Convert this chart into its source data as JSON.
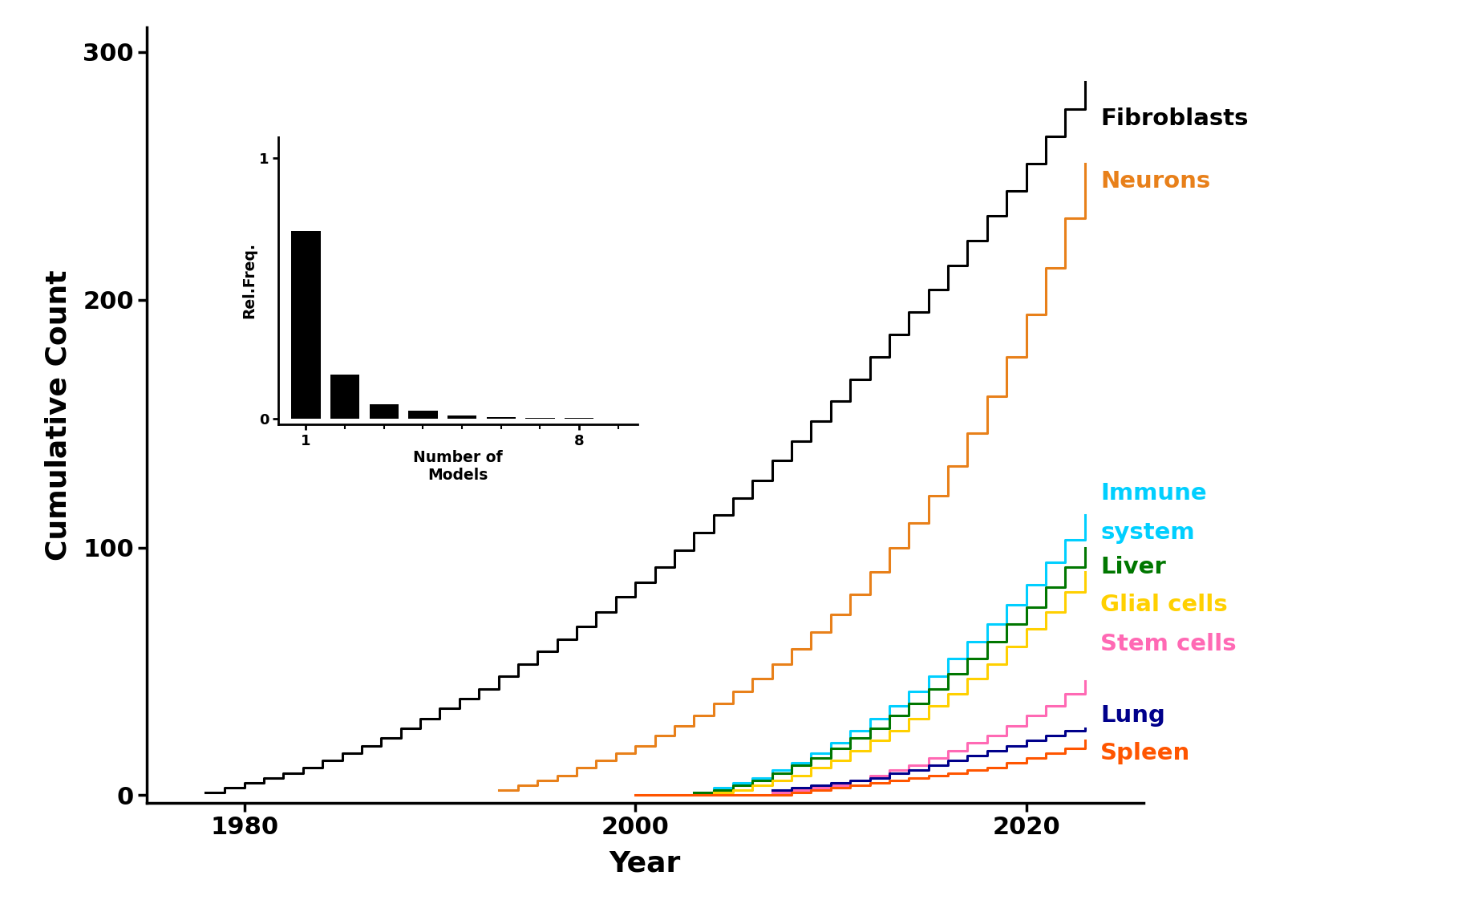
{
  "xlabel": "Year",
  "ylabel": "Cumulative Count",
  "xlim": [
    1975,
    2026
  ],
  "ylim": [
    -3,
    310
  ],
  "xticks": [
    1980,
    2000,
    2020
  ],
  "yticks": [
    0,
    100,
    200,
    300
  ],
  "background_color": "#ffffff",
  "series_colors": {
    "Fibroblasts": "#000000",
    "Neurons": "#E8801A",
    "Immune system": "#00CFFF",
    "Liver": "#007700",
    "Glial cells": "#FFD000",
    "Stem cells": "#FF69B4",
    "Lung": "#00008B",
    "Spleen": "#FF5500"
  },
  "inset": {
    "bar_heights": [
      0.72,
      0.17,
      0.055,
      0.03,
      0.012,
      0.006,
      0.004,
      0.003
    ],
    "bar_color": "#000000",
    "xlabel": "Number of\nModels",
    "ylabel": "Rel.Freq.",
    "xticks": [
      1,
      8
    ],
    "yticks": [
      0,
      1
    ],
    "xlim": [
      0.3,
      9.5
    ],
    "ylim": [
      -0.02,
      1.08
    ]
  },
  "font_size_axis_label": 26,
  "font_size_tick_label": 22,
  "font_size_legend": 21,
  "line_width": 2.2
}
